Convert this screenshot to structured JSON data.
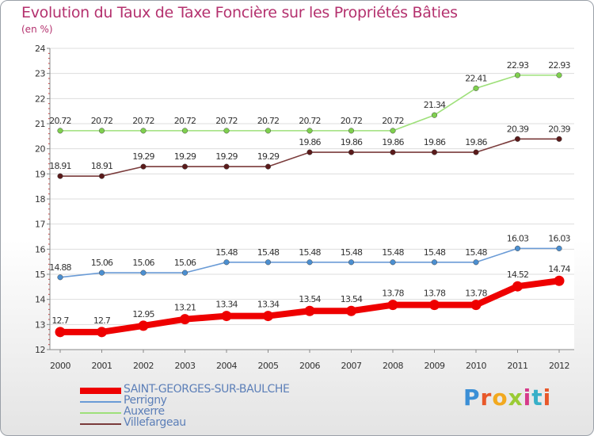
{
  "title": "Evolution du Taux de Taxe Foncière sur les Propriétés Bâties",
  "subtitle": "(en %)",
  "logo_text": "Proxiti",
  "colors": {
    "title": "#b4316e",
    "axis": "#888888",
    "grid": "#dddddd",
    "legend_text": "#5c7fb8"
  },
  "chart_data": {
    "type": "line",
    "x": [
      "2000",
      "2001",
      "2002",
      "2003",
      "2004",
      "2005",
      "2006",
      "2007",
      "2008",
      "2009",
      "2010",
      "2011",
      "2012"
    ],
    "ylim": [
      12,
      24
    ],
    "yticks": [
      12,
      13,
      14,
      15,
      16,
      17,
      18,
      19,
      20,
      21,
      22,
      23,
      24
    ],
    "grid": "horizontal",
    "legend_position": "bottom-left",
    "series": [
      {
        "name": "SAINT-GEORGES-SUR-BAULCHE",
        "color": "#ee0000",
        "marker_color": "#ee0000",
        "emphasis": true,
        "values": [
          12.7,
          12.7,
          12.95,
          13.21,
          13.34,
          13.34,
          13.54,
          13.54,
          13.78,
          13.78,
          13.78,
          14.52,
          14.74
        ],
        "labels": [
          "12.7",
          "12.7",
          "12.95",
          "13.21",
          "13.34",
          "13.34",
          "13.54",
          "13.54",
          "13.78",
          "13.78",
          "13.78",
          "14.52",
          "14.74"
        ]
      },
      {
        "name": "Perrigny",
        "color": "#6a9bd6",
        "marker_color": "#4b8fd1",
        "emphasis": false,
        "values": [
          14.88,
          15.06,
          15.06,
          15.06,
          15.48,
          15.48,
          15.48,
          15.48,
          15.48,
          15.48,
          15.48,
          16.03,
          16.03
        ],
        "labels": [
          "14.88",
          "15.06",
          "15.06",
          "15.06",
          "15.48",
          "15.48",
          "15.48",
          "15.48",
          "15.48",
          "15.48",
          "15.48",
          "16.03",
          "16.03"
        ]
      },
      {
        "name": "Auxerre",
        "color": "#9ee07a",
        "marker_color": "#7fd04e",
        "emphasis": false,
        "values": [
          20.72,
          20.72,
          20.72,
          20.72,
          20.72,
          20.72,
          20.72,
          20.72,
          20.72,
          21.34,
          22.41,
          22.93,
          22.93
        ],
        "labels": [
          "20.72",
          "20.72",
          "20.72",
          "20.72",
          "20.72",
          "20.72",
          "20.72",
          "20.72",
          "20.72",
          "21.34",
          "22.41",
          "22.93",
          "22.93"
        ]
      },
      {
        "name": "Villefargeau",
        "color": "#7a3b3b",
        "marker_color": "#5a1a1a",
        "emphasis": false,
        "values": [
          18.91,
          18.91,
          19.29,
          19.29,
          19.29,
          19.29,
          19.86,
          19.86,
          19.86,
          19.86,
          19.86,
          20.39,
          20.39
        ],
        "labels": [
          "18.91",
          "18.91",
          "19.29",
          "19.29",
          "19.29",
          "19.29",
          "19.86",
          "19.86",
          "19.86",
          "19.86",
          "19.86",
          "20.39",
          "20.39"
        ]
      }
    ]
  }
}
